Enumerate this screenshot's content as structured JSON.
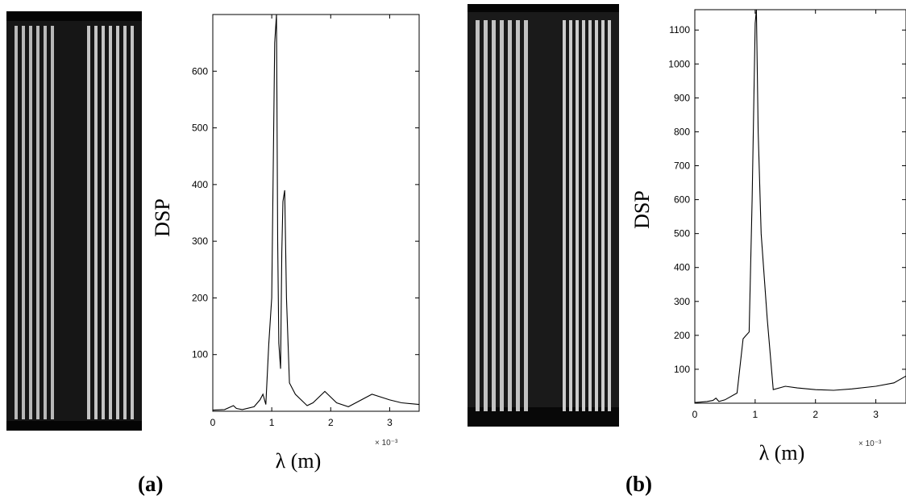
{
  "panels": [
    {
      "label": "(a)"
    },
    {
      "label": "(b)"
    }
  ],
  "chart_data": [
    {
      "type": "line",
      "title": "",
      "xlabel": "λ (m)",
      "ylabel": "DSP",
      "x_exponent_label": "× 10⁻³",
      "xlim": [
        0,
        3.5
      ],
      "ylim": [
        0,
        700
      ],
      "xticks": [
        0,
        1,
        2,
        3
      ],
      "yticks": [
        100,
        200,
        300,
        400,
        500,
        600
      ],
      "grid": false,
      "line_color": "#000000",
      "series": [
        {
          "x": [
            0,
            0.2,
            0.35,
            0.4,
            0.5,
            0.7,
            0.8,
            0.85,
            0.9,
            0.95,
            1.0,
            1.05,
            1.08,
            1.1,
            1.12,
            1.15,
            1.17,
            1.19,
            1.22,
            1.25,
            1.3,
            1.4,
            1.6,
            1.7,
            1.9,
            2.1,
            2.3,
            2.7,
            3.0,
            3.2,
            3.5
          ],
          "y": [
            2,
            3,
            10,
            5,
            3,
            8,
            20,
            30,
            12,
            120,
            200,
            650,
            700,
            300,
            120,
            75,
            280,
            370,
            390,
            200,
            50,
            30,
            10,
            15,
            35,
            15,
            8,
            30,
            20,
            15,
            12
          ]
        }
      ]
    },
    {
      "type": "line",
      "title": "",
      "xlabel": "λ (m)",
      "ylabel": "DSP",
      "x_exponent_label": "× 10⁻³",
      "xlim": [
        0,
        3.5
      ],
      "ylim": [
        0,
        1160
      ],
      "xticks": [
        0,
        1,
        2,
        3
      ],
      "yticks": [
        100,
        200,
        300,
        400,
        500,
        600,
        700,
        800,
        900,
        1000,
        1100
      ],
      "grid": false,
      "line_color": "#000000",
      "series": [
        {
          "x": [
            0,
            0.2,
            0.3,
            0.35,
            0.4,
            0.5,
            0.7,
            0.8,
            0.85,
            0.9,
            0.95,
            1.0,
            1.02,
            1.05,
            1.1,
            1.2,
            1.3,
            1.5,
            1.7,
            2.0,
            2.3,
            2.6,
            3.0,
            3.3,
            3.5
          ],
          "y": [
            2,
            5,
            8,
            15,
            5,
            10,
            30,
            190,
            200,
            210,
            600,
            1120,
            1160,
            800,
            500,
            250,
            40,
            50,
            45,
            40,
            38,
            42,
            50,
            60,
            80
          ]
        }
      ]
    }
  ]
}
